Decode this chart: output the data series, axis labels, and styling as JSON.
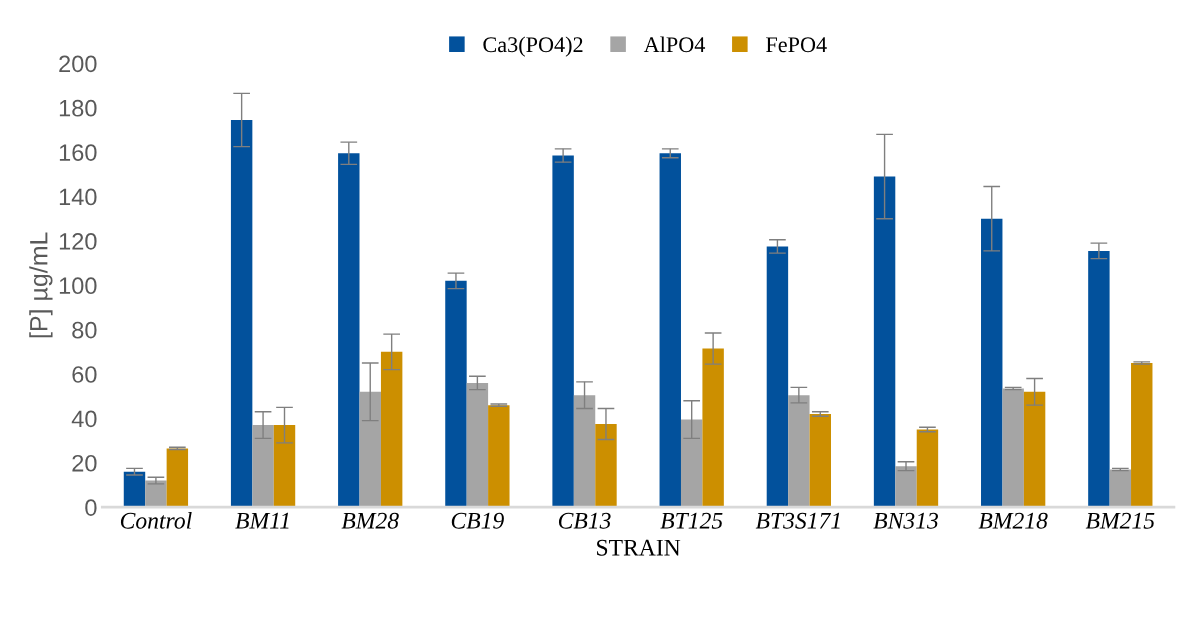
{
  "chart_data": {
    "type": "bar",
    "xlabel": "STRAIN",
    "ylabel": "[P] µg/mL",
    "categories": [
      "Control",
      "BM11",
      "BM28",
      "CB19",
      "CB13",
      "BT125",
      "BT3S171",
      "BN313",
      "BM218",
      "BM215"
    ],
    "series": [
      {
        "name": "Ca3(PO4)2",
        "color": "#02519c",
        "values": [
          16,
          174.5,
          159.5,
          102,
          158.5,
          159.5,
          117.5,
          149,
          130,
          115.5
        ],
        "errors": [
          1.5,
          12,
          5,
          3.5,
          3,
          2,
          3,
          19,
          14.5,
          3.5
        ]
      },
      {
        "name": "AlPO4",
        "color": "#a5a5a5",
        "values": [
          12,
          37,
          52,
          56,
          50.5,
          39.5,
          50.5,
          18.5,
          53.5,
          17
        ],
        "errors": [
          1.5,
          6,
          13,
          3,
          6,
          8.5,
          3.5,
          2,
          0.5,
          0.5
        ]
      },
      {
        "name": "FePO4",
        "color": "#cc8f00",
        "values": [
          26.5,
          37,
          70,
          46,
          37.5,
          71.5,
          42,
          35,
          52,
          65
        ],
        "errors": [
          0.5,
          8,
          8,
          0.5,
          7,
          7,
          1,
          1,
          6,
          0.5
        ]
      }
    ],
    "ylim": [
      0,
      200
    ],
    "yticks": [
      0,
      20,
      40,
      60,
      80,
      100,
      120,
      140,
      160,
      180,
      200
    ],
    "grid": false,
    "legend": "top"
  }
}
